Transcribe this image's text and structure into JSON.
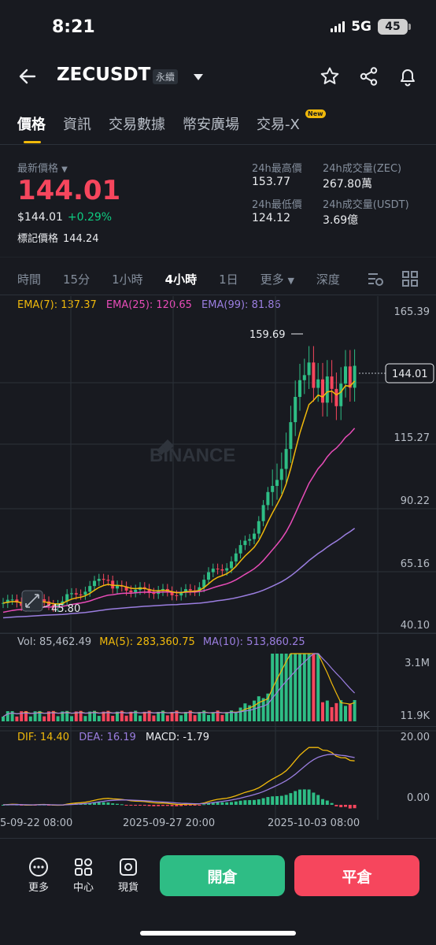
{
  "status": {
    "time": "8:21",
    "network": "5G",
    "battery": "45"
  },
  "header": {
    "symbol": "ZECUSDT",
    "contract_type": "永續"
  },
  "tabs": [
    {
      "label": "價格"
    },
    {
      "label": "資訊"
    },
    {
      "label": "交易數據"
    },
    {
      "label": "幣安廣場"
    },
    {
      "label": "交易-X"
    }
  ],
  "new_badge": "New",
  "price": {
    "label": "最新價格",
    "value": "144.01",
    "usd": "$144.01",
    "change": "+0.29%",
    "mark_label": "標記價格",
    "mark_value": "144.24"
  },
  "stats": {
    "high_label": "24h最高價",
    "high": "153.77",
    "low_label": "24h最低價",
    "low": "124.12",
    "vol_zec_label": "24h成交量(ZEC)",
    "vol_zec": "267.80萬",
    "vol_usdt_label": "24h成交量(USDT)",
    "vol_usdt": "3.69億"
  },
  "intervals": [
    "時間",
    "15分",
    "1小時",
    "4小時",
    "1日",
    "更多",
    "深度"
  ],
  "selected_interval": "4小時",
  "ema": {
    "ema7": "EMA(7): 137.37",
    "ema25": "EMA(25): 120.65",
    "ema99": "EMA(99): 81.86"
  },
  "price_axis": [
    "165.39",
    "115.27",
    "90.22",
    "65.16",
    "40.10"
  ],
  "current_price_tag": "144.01",
  "high_marker": "159.69",
  "low_marker": "45.80",
  "watermark": "BINANCE",
  "volume": {
    "vol": "Vol: 85,462.49",
    "ma5": "MA(5): 283,360.75",
    "ma10": "MA(10): 513,860.25",
    "axis_top": "3.1M",
    "axis_bottom": "11.9K"
  },
  "macd": {
    "dif": "DIF: 14.40",
    "dea": "DEA: 16.19",
    "macd": "MACD: -1.79",
    "axis_top": "20.00",
    "axis_bottom": "0.00"
  },
  "time_axis": [
    "5-09-22 08:00",
    "2025-09-27 20:00",
    "2025-10-03 08:00"
  ],
  "bottom_nav": [
    {
      "label": "更多"
    },
    {
      "label": "中心"
    },
    {
      "label": "現貨"
    }
  ],
  "buttons": {
    "open": "開倉",
    "close": "平倉"
  },
  "colors": {
    "up": "#2ebd85",
    "down": "#f6465d",
    "ema7": "#f0b90b",
    "ema25": "#e84cb8",
    "ema99": "#9b7ee0",
    "accent": "#f0b90b"
  }
}
